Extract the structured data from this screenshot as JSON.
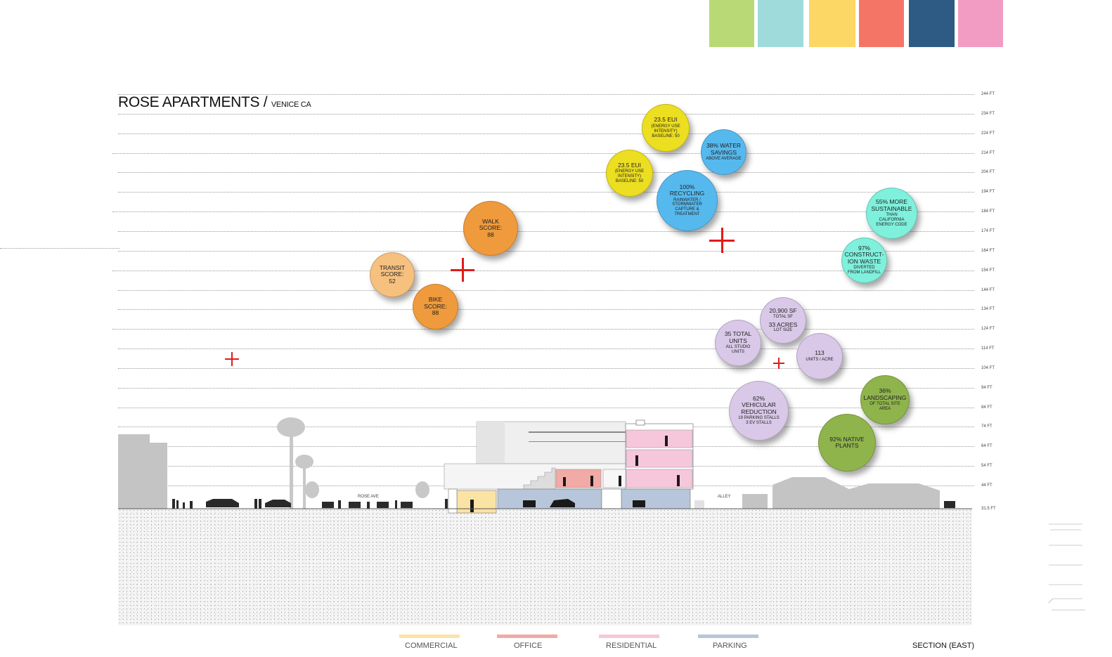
{
  "palette": [
    "#b9d977",
    "#9fdbdb",
    "#fdd766",
    "#f47566",
    "#2d5b84",
    "#f29cc4"
  ],
  "title": {
    "main": "ROSE APARTMENTS / ",
    "sub": "VENICE CA"
  },
  "elevations": [
    "244 FT",
    "234 FT",
    "224 FT",
    "214 FT",
    "204 FT",
    "194 FT",
    "184 FT",
    "174 FT",
    "164 FT",
    "154 FT",
    "144 FT",
    "134 FT",
    "124 FT",
    "114 FT",
    "104 FT",
    "94 FT",
    "84 FT",
    "74 FT",
    "64 FT",
    "54 FT",
    "44 FT",
    "31.5 FT"
  ],
  "bubbles": {
    "walk": {
      "main": "WALK\nSCORE:\n88",
      "color": "#ef9a3c"
    },
    "transit": {
      "main": "TRANSIT\nSCORE:\n52",
      "color": "#f6c07f"
    },
    "bike": {
      "main": "BIKE\nSCORE:\n88",
      "color": "#ef9a3c"
    },
    "eui_top": {
      "main": "23.5 EUI",
      "sub": "(ENERGY USE\nINTENSITY)\nBASELINE: 50",
      "color": "#ecde20"
    },
    "eui_low": {
      "main": "23.5 EUI",
      "sub": "(ENERGY USE\nINTENSITY)\nBASELINE: 50",
      "color": "#ecde20"
    },
    "water": {
      "main": "38% WATER\nSAVINGS",
      "sub": "ABOVE AVERAGE",
      "color": "#56b9ee"
    },
    "recycling": {
      "main": "100%\nRECYCLING",
      "sub": "RAINWATER /\nSTORMWATER\nCAPTURE &\nTREATMENT",
      "color": "#56b9ee"
    },
    "sustainable": {
      "main": "55% MORE\nSUSTAINABLE",
      "sub": "THAN\nCALIFORNIA\nENERGY CODE",
      "color": "#7ff0dc"
    },
    "waste": {
      "main": "97%\nCONSTRUCT-\nION WASTE",
      "sub": "DIVERTED\nFROM LANDFILL",
      "color": "#7ff0dc"
    },
    "sf": {
      "main": "20,900 SF",
      "sub": "TOTAL SF",
      "main2": "33 ACRES",
      "sub2": "LOT SIZE",
      "color": "#d9c8e8"
    },
    "units": {
      "main": "35 TOTAL\nUNITS",
      "sub": "ALL STUDIO\nUNITS",
      "color": "#d9c8e8"
    },
    "density": {
      "main": "113",
      "sub": "UNITS / ACRE",
      "color": "#d9c8e8"
    },
    "vehicular": {
      "main": "62%\nVEHICULAR\nREDUCTION",
      "sub": "19 PARKING STALLS\n3 EV STALLS",
      "color": "#d9c8e8"
    },
    "landscaping": {
      "main": "36%\nLANDSCAPING",
      "sub": "OF TOTAL SITE AREA",
      "color": "#8fb44c"
    },
    "native": {
      "main": "92% NATIVE\nPLANTS",
      "color": "#8fb44c"
    }
  },
  "street_labels": {
    "rose": "ROSE AVE",
    "alley": "ALLEY"
  },
  "legend": [
    {
      "label": "COMMERCIAL",
      "color": "#fbe3a4"
    },
    {
      "label": "OFFICE",
      "color": "#f2aaa6"
    },
    {
      "label": "RESIDENTIAL",
      "color": "#f6c7db"
    },
    {
      "label": "PARKING",
      "color": "#b7c6da"
    }
  ],
  "section_label": "SECTION (EAST)"
}
